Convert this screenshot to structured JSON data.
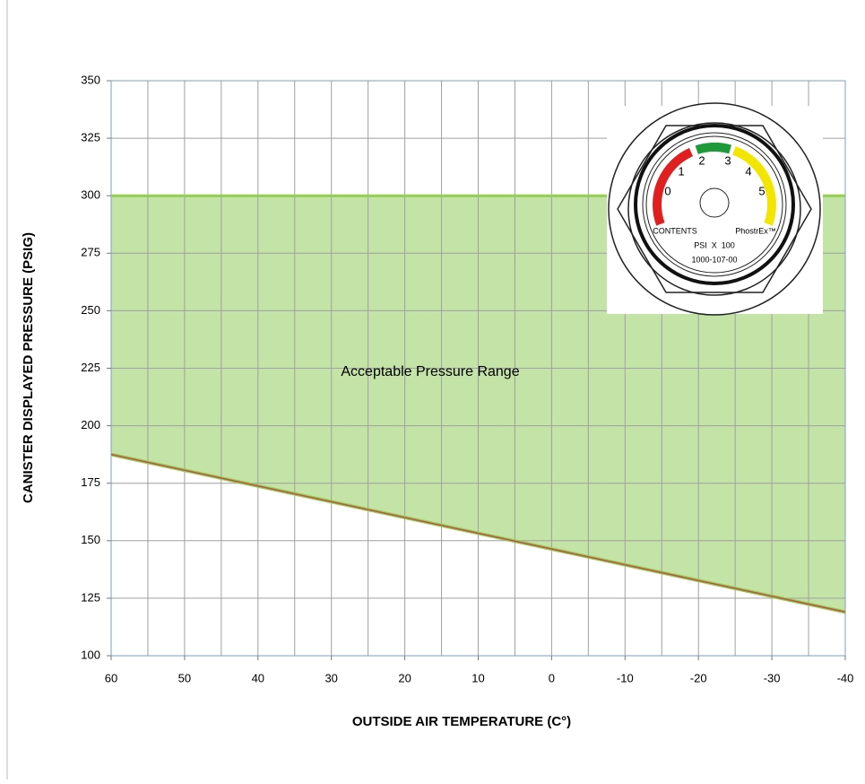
{
  "chart_data": {
    "type": "area_between",
    "xlabel": "OUTSIDE AIR TEMPERATURE (C°)",
    "ylabel": "CANISTER DISPLAYED PRESSURE (PSIG)",
    "annotation": "Acceptable Pressure Range",
    "x": [
      60,
      -40
    ],
    "series": [
      {
        "color": "#92d050",
        "values": [
          300,
          300
        ]
      },
      {
        "color": "#c0504d",
        "values": [
          187.5,
          119
        ]
      }
    ],
    "fill_color": "#c4e3a6",
    "xlim": [
      60,
      -40
    ],
    "xticks": [
      60,
      50,
      40,
      30,
      20,
      10,
      0,
      -10,
      -20,
      -30,
      -40
    ],
    "x_minor_gridlines": [
      55,
      45,
      35,
      25,
      15,
      5,
      -5,
      -15,
      -25,
      -35
    ],
    "ylim": [
      100,
      350
    ],
    "yticks": [
      100,
      125,
      150,
      175,
      200,
      225,
      250,
      275,
      300,
      325,
      350
    ],
    "grid": true,
    "gauge": {
      "scale_labels": [
        "0",
        "1",
        "2",
        "3",
        "4",
        "5"
      ],
      "contents": "CONTENTS",
      "brand": "PhostrEx™",
      "units": "PSI  X  100",
      "part_number": "1000-107-00"
    }
  }
}
